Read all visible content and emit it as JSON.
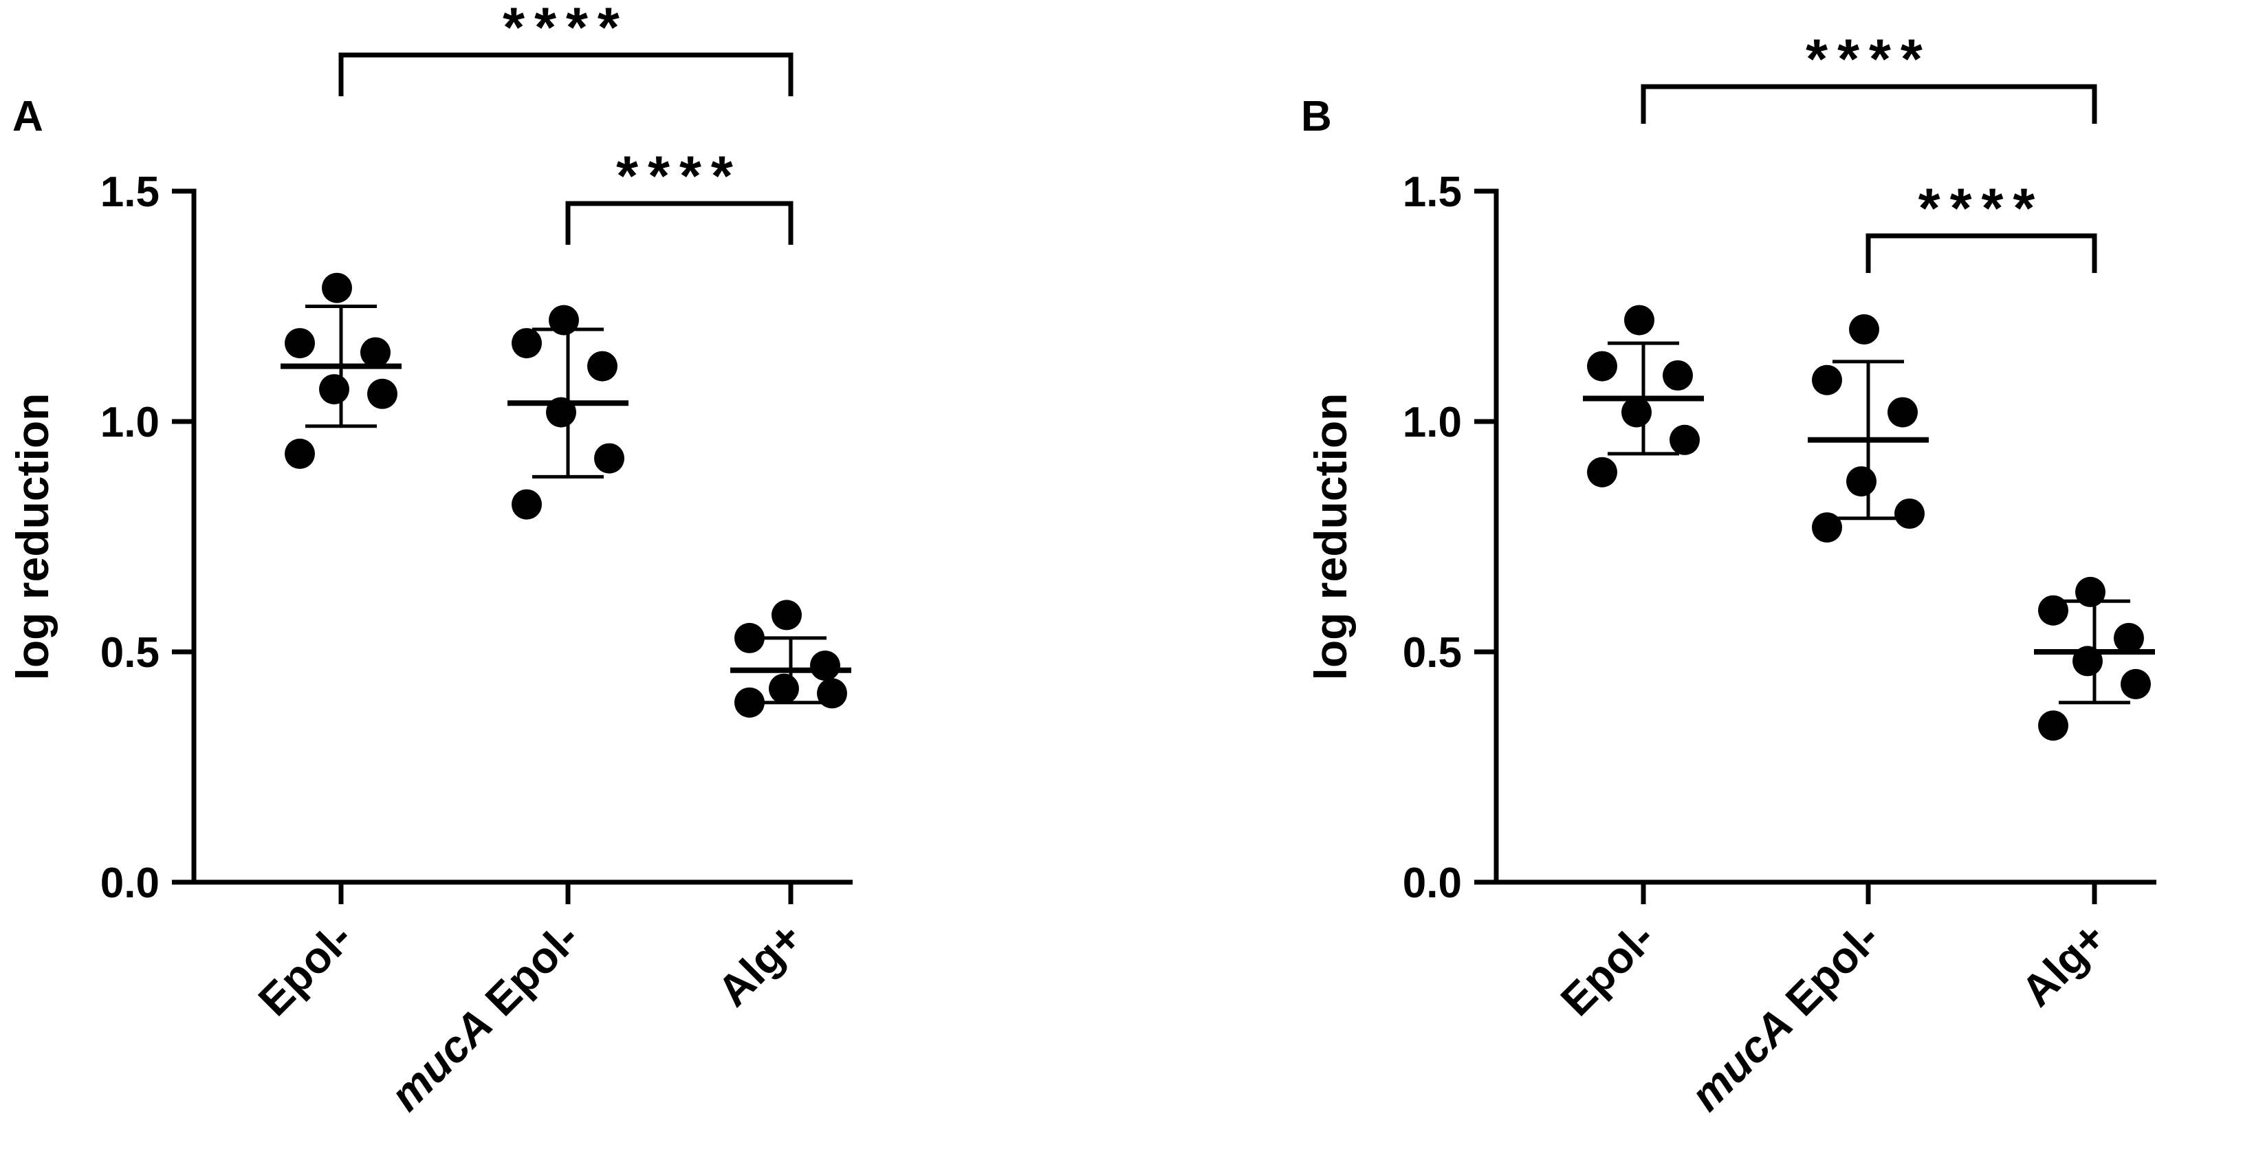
{
  "chart_data": [
    {
      "panel_label": "A",
      "type": "scatter",
      "categories": [
        "Epol-",
        "mucA Epol-",
        "Alg+"
      ],
      "category_label_parts": [
        [
          {
            "text": "Epol-",
            "italic": false
          }
        ],
        [
          {
            "text": "mucA",
            "italic": true
          },
          {
            "text": " Epol-",
            "italic": false
          }
        ],
        [
          {
            "text": "Alg+",
            "italic": false
          }
        ]
      ],
      "ylabel": "log reduction",
      "ylim": [
        0,
        1.5
      ],
      "yticks": [
        0.0,
        0.5,
        1.0,
        1.5
      ],
      "ytick_labels": [
        "0.0",
        "0.5",
        "1.0",
        "1.5"
      ],
      "points": [
        [
          1.29,
          1.17,
          1.15,
          1.07,
          1.06,
          0.93
        ],
        [
          1.22,
          1.17,
          1.12,
          1.02,
          0.92,
          0.82
        ],
        [
          0.58,
          0.53,
          0.47,
          0.42,
          0.41,
          0.39
        ]
      ],
      "mean": [
        1.12,
        1.04,
        0.46
      ],
      "sd": [
        0.13,
        0.16,
        0.07
      ],
      "significance": [
        {
          "from": 0,
          "to": 2,
          "label": "****"
        },
        {
          "from": 1,
          "to": 2,
          "label": "****"
        }
      ]
    },
    {
      "panel_label": "B",
      "type": "scatter",
      "categories": [
        "Epol-",
        "mucA Epol-",
        "Alg+"
      ],
      "category_label_parts": [
        [
          {
            "text": "Epol-",
            "italic": false
          }
        ],
        [
          {
            "text": "mucA",
            "italic": true
          },
          {
            "text": " Epol-",
            "italic": false
          }
        ],
        [
          {
            "text": "Alg+",
            "italic": false
          }
        ]
      ],
      "ylabel": "log reduction",
      "ylim": [
        0,
        1.5
      ],
      "yticks": [
        0.0,
        0.5,
        1.0,
        1.5
      ],
      "ytick_labels": [
        "0.0",
        "0.5",
        "1.0",
        "1.5"
      ],
      "points": [
        [
          1.22,
          1.12,
          1.1,
          1.02,
          0.96,
          0.89
        ],
        [
          1.2,
          1.09,
          1.02,
          0.87,
          0.8,
          0.77
        ],
        [
          0.63,
          0.59,
          0.53,
          0.48,
          0.43,
          0.34
        ]
      ],
      "mean": [
        1.05,
        0.96,
        0.5
      ],
      "sd": [
        0.12,
        0.17,
        0.11
      ],
      "significance": [
        {
          "from": 0,
          "to": 2,
          "label": "****"
        },
        {
          "from": 1,
          "to": 2,
          "label": "****"
        }
      ]
    }
  ]
}
